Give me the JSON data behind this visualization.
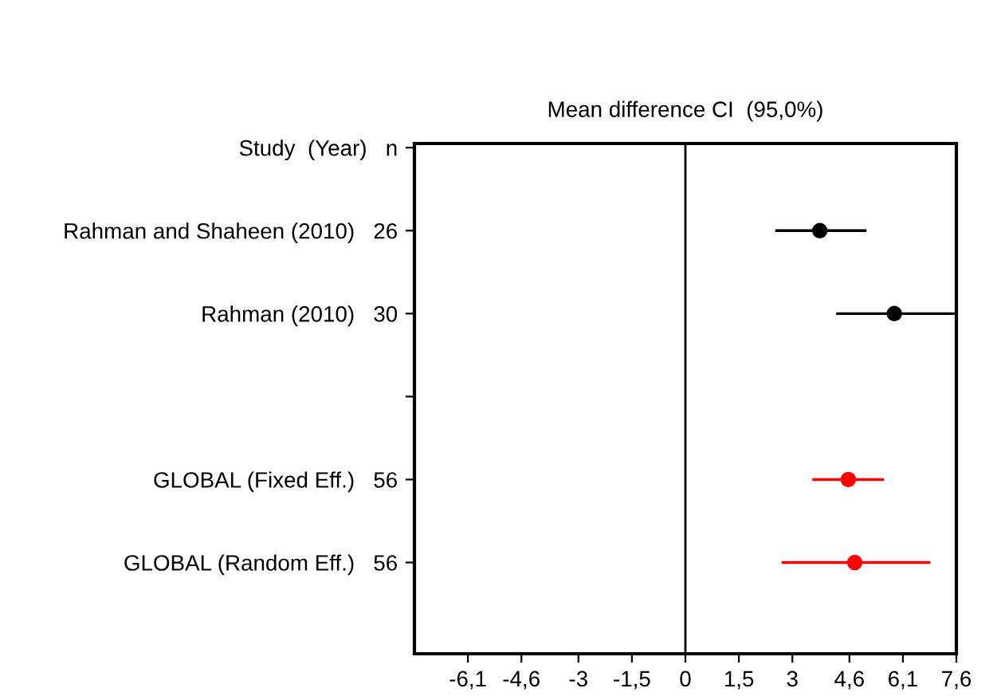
{
  "chart_data": {
    "type": "scatter",
    "orientation": "horizontal",
    "title": "Mean difference CI  (95,0%)",
    "categories": [
      "Study  (Year)   n",
      "Rahman and Shaheen (2010)   26",
      "Rahman (2010)   30",
      null,
      "GLOBAL (Fixed Eff.)   56",
      "GLOBAL (Random Eff.)   56"
    ],
    "series": [
      {
        "color": "#000000",
        "values": [
          null,
          3.77,
          5.86,
          null,
          null,
          null
        ],
        "errors": [
          null,
          [
            2.52,
            5.08
          ],
          [
            4.23,
            7.6
          ],
          null,
          null,
          null
        ]
      },
      {
        "color": "#ff0000",
        "values": [
          null,
          null,
          null,
          null,
          4.57,
          4.75
        ],
        "errors": [
          null,
          null,
          null,
          null,
          [
            3.56,
            5.57
          ],
          [
            2.7,
            6.87
          ]
        ]
      }
    ],
    "xlim": [
      -7.6,
      7.6
    ],
    "xticks": [
      {
        "value": -6.1,
        "label": "-6,1"
      },
      {
        "value": -4.6,
        "label": "-4,6"
      },
      {
        "value": -3,
        "label": "-3"
      },
      {
        "value": -1.5,
        "label": "-1,5"
      },
      {
        "value": 0,
        "label": "0"
      },
      {
        "value": 1.5,
        "label": "1,5"
      },
      {
        "value": 3,
        "label": "3"
      },
      {
        "value": 4.6,
        "label": "4,6"
      },
      {
        "value": 6.1,
        "label": "6,1"
      },
      {
        "value": 7.6,
        "label": "7,6"
      }
    ],
    "ref_lines": [
      {
        "axis": "x",
        "value": 0,
        "color": "#000000"
      }
    ],
    "marker": "circle",
    "grid": false,
    "legend": false
  }
}
